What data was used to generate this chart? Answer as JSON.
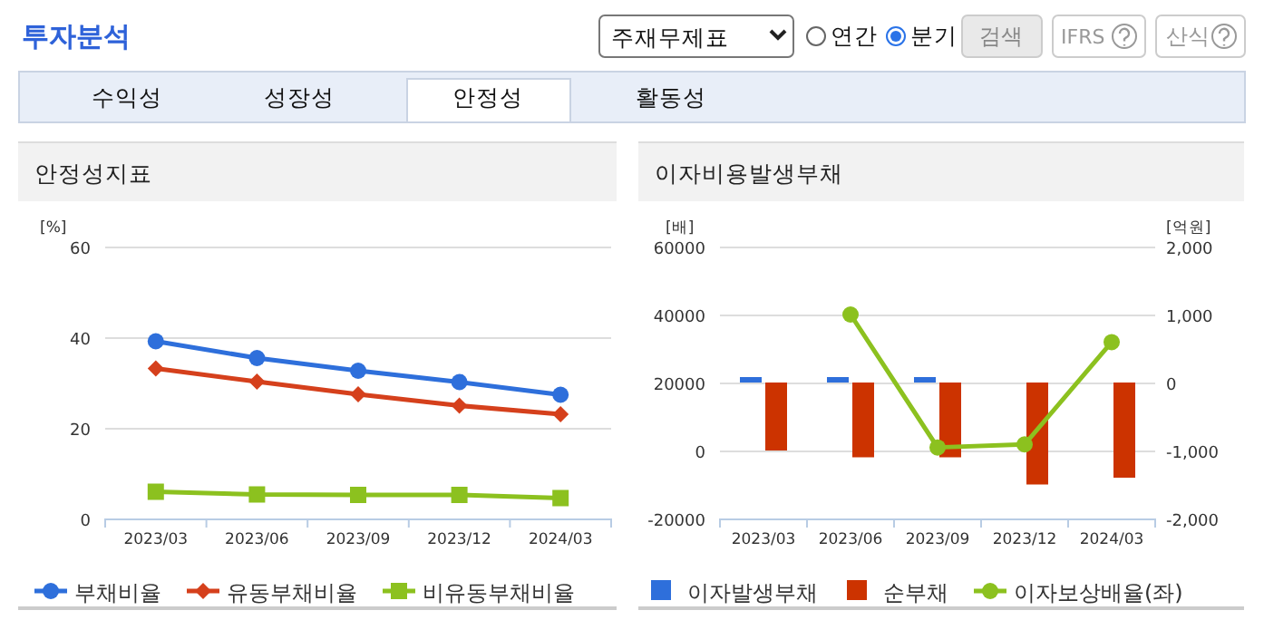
{
  "chart_data": [
    {
      "type": "other",
      "title": "투자분석",
      "annotations": [
        "주재무제표",
        "연간",
        "분기",
        "검색",
        "IFRS",
        "산식",
        "수익성",
        "성장성",
        "안정성",
        "활동성"
      ]
    },
    {
      "type": "line",
      "title": "안정성지표",
      "ylabel": "[%]",
      "categories": [
        "2023/03",
        "2023/06",
        "2023/09",
        "2023/12",
        "2024/03"
      ],
      "ylim": [
        0,
        60
      ],
      "yticks": [
        0,
        20,
        40,
        60
      ],
      "grid": "y",
      "legend": "bottom",
      "series": [
        {
          "name": "부채비율",
          "color": "#2e6fdb",
          "marker": "circle",
          "values": [
            39.1,
            35.4,
            32.6,
            30.1,
            27.3
          ]
        },
        {
          "name": "유동부채비율",
          "color": "#d5401c",
          "marker": "diamond",
          "values": [
            33.1,
            30.2,
            27.4,
            24.9,
            23.0
          ]
        },
        {
          "name": "비유동부채비율",
          "color": "#8cc11f",
          "marker": "square",
          "values": [
            5.9,
            5.3,
            5.2,
            5.2,
            4.5
          ]
        }
      ]
    },
    {
      "type": "bar",
      "title": "이자비용발생부채",
      "ylabel": "[배]",
      "y2label": "[억원]",
      "categories": [
        "2023/03",
        "2023/06",
        "2023/09",
        "2023/12",
        "2024/03"
      ],
      "ylim": [
        -20000,
        60000
      ],
      "yticks": [
        -20000,
        0,
        20000,
        40000,
        60000
      ],
      "y2lim": [
        -2000,
        2000
      ],
      "y2ticks": [
        {
          "value": -2000,
          "label": "-2,000"
        },
        {
          "value": -1000,
          "label": "-1,000"
        },
        0,
        {
          "value": 1000,
          "label": "1,000"
        },
        {
          "value": 2000,
          "label": "2,000"
        }
      ],
      "grid": "y",
      "legend": "bottom",
      "series": [
        {
          "name": "이자발생부채",
          "color": "#2e6fdb",
          "axis": "y2",
          "values": [
            80,
            80,
            80,
            null,
            null
          ]
        },
        {
          "name": "순부채",
          "color": "#cc3300",
          "axis": "y2",
          "values": [
            -1000,
            -1100,
            -1100,
            -1500,
            -1400
          ]
        },
        {
          "name": "이자보상배율(좌)",
          "type": "line",
          "color": "#8cc11f",
          "axis": "y",
          "marker": "circle",
          "values": [
            null,
            40000,
            900,
            1800,
            31900
          ]
        }
      ]
    }
  ]
}
